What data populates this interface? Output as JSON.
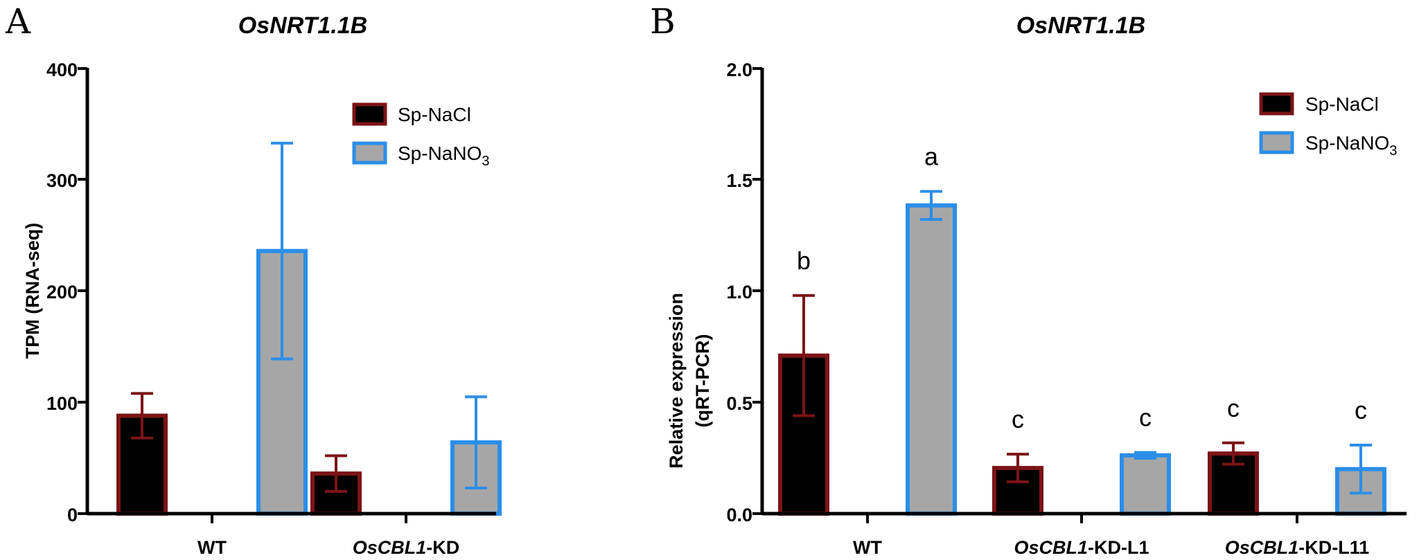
{
  "colors": {
    "nacl_fill": "#000000",
    "nacl_edge": "#7b1416",
    "nano3_fill": "#a6a6a6",
    "nano3_edge": "#2b8ee8",
    "axis": "#000000"
  },
  "chart_data": [
    {
      "panel": "A",
      "type": "bar",
      "title": "OsNRT1.1B",
      "ylabel": "TPM (RNA-seq)",
      "xlabel": "",
      "ylim": [
        0,
        400
      ],
      "yticks": [
        "0",
        "100",
        "200",
        "300",
        "400"
      ],
      "categories": [
        {
          "italic": "",
          "plain": "WT"
        },
        {
          "italic": "OsCBL1",
          "plain": "-KD"
        }
      ],
      "legend": {
        "placement": "top-right",
        "entries": [
          "Sp-NaCl",
          "Sp-NaNO",
          "3"
        ]
      },
      "series": [
        {
          "name": "Sp-NaCl",
          "values": [
            88,
            36
          ],
          "error": [
            20,
            16
          ],
          "letters": [
            "",
            ""
          ]
        },
        {
          "name": "Sp-NaNO3",
          "values": [
            236,
            64
          ],
          "error": [
            97,
            41
          ],
          "letters": [
            "",
            ""
          ]
        }
      ]
    },
    {
      "panel": "B",
      "type": "bar",
      "title": "OsNRT1.1B",
      "ylabel": "Relative expression",
      "ylabel2": "(qRT-PCR)",
      "xlabel": "",
      "ylim": [
        0,
        2.0
      ],
      "yticks": [
        "0.0",
        "0.5",
        "1.0",
        "1.5",
        "2.0"
      ],
      "categories": [
        {
          "italic": "",
          "plain": "WT"
        },
        {
          "italic": "OsCBL1",
          "plain": "-KD-L1"
        },
        {
          "italic": "OsCBL1",
          "plain": "-KD-L11"
        }
      ],
      "legend": {
        "placement": "top-right",
        "entries": [
          "Sp-NaCl",
          "Sp-NaNO",
          "3"
        ]
      },
      "series": [
        {
          "name": "Sp-NaCl",
          "values": [
            0.71,
            0.205,
            0.27
          ],
          "error": [
            0.27,
            0.062,
            0.048
          ],
          "letters": [
            "b",
            "c",
            "c"
          ]
        },
        {
          "name": "Sp-NaNO3",
          "values": [
            1.385,
            0.262,
            0.2
          ],
          "error": [
            0.063,
            0.013,
            0.108
          ],
          "letters": [
            "a",
            "c",
            "c"
          ]
        }
      ]
    }
  ]
}
